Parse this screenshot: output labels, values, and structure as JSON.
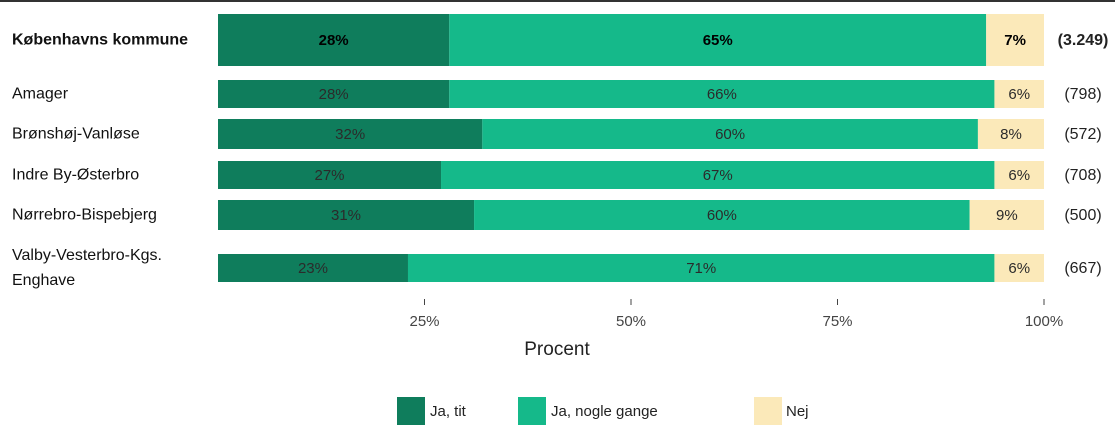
{
  "chart_data": {
    "type": "stacked_barh",
    "categories": [
      "Københavns kommune",
      "Amager",
      "Brønshøj-Vanløse",
      "Indre By-Østerbro",
      "Nørrebro-Bispebjerg",
      "Valby-Vesterbro-Kgs. Enghave"
    ],
    "counts": [
      "(3.249)",
      "(798)",
      "(572)",
      "(708)",
      "(500)",
      "(667)"
    ],
    "series": [
      {
        "name": "Ja, tit",
        "color": "#0f7d5c",
        "values": [
          28,
          28,
          32,
          27,
          31,
          23
        ],
        "value_labels": [
          "28%",
          "28%",
          "32%",
          "27%",
          "31%",
          "23%"
        ]
      },
      {
        "name": "Ja, nogle gange",
        "color": "#15b98a",
        "values": [
          65,
          66,
          60,
          67,
          60,
          71
        ],
        "value_labels": [
          "65%",
          "66%",
          "60%",
          "67%",
          "60%",
          "71%"
        ]
      },
      {
        "name": "Nej",
        "color": "#fbe9b9",
        "values": [
          7,
          6,
          8,
          6,
          9,
          6
        ],
        "value_labels": [
          "7%",
          "6%",
          "8%",
          "6%",
          "9%",
          "6%"
        ]
      }
    ],
    "xlim": [
      0,
      100
    ],
    "xticks": [
      {
        "value": 25,
        "label": "25%"
      },
      {
        "value": 50,
        "label": "50%"
      },
      {
        "value": 75,
        "label": "75%"
      },
      {
        "value": 100,
        "label": "100%"
      }
    ],
    "xlabel": "Procent",
    "legend": "bottom"
  }
}
